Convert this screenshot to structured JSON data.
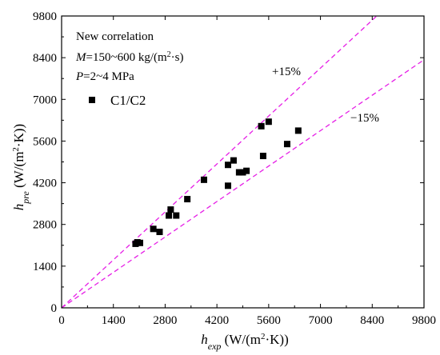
{
  "chart_data": {
    "type": "scatter",
    "title": "",
    "xlabel": {
      "main": "h",
      "sub": "exp",
      "unit": " (W/(m",
      "sup": "2",
      "unit_end": "·K))"
    },
    "ylabel": {
      "main": "h",
      "sub": "pre",
      "unit": " (W/(m",
      "sup": "2",
      "unit_end": "·K))"
    },
    "xlim": [
      0,
      9800
    ],
    "ylim": [
      0,
      9800
    ],
    "xticks": [
      0,
      1400,
      2800,
      4200,
      5600,
      7000,
      8400,
      9800
    ],
    "yticks": [
      0,
      1400,
      2800,
      4200,
      5600,
      7000,
      8400,
      9800
    ],
    "grid": false,
    "annotations": {
      "line1": "New correlation",
      "line2_var": "M",
      "line2_rest": "=150~600 kg/(m",
      "line2_sup": "2",
      "line2_end": "·s)",
      "line3_var": "P",
      "line3_rest": "=2~4 MPa"
    },
    "bands": [
      {
        "label": "+15%",
        "factor": 1.15,
        "color": "#e61ee6"
      },
      {
        "label": "−15%",
        "factor": 0.85,
        "color": "#e61ee6"
      }
    ],
    "series": [
      {
        "name": "C1/C2",
        "marker": "square",
        "color": "#000000",
        "points": [
          [
            2000,
            2150
          ],
          [
            2050,
            2200
          ],
          [
            2120,
            2180
          ],
          [
            2480,
            2650
          ],
          [
            2650,
            2550
          ],
          [
            2900,
            3100
          ],
          [
            2950,
            3300
          ],
          [
            3100,
            3100
          ],
          [
            3400,
            3650
          ],
          [
            3850,
            4300
          ],
          [
            4500,
            4800
          ],
          [
            4500,
            4100
          ],
          [
            4650,
            4950
          ],
          [
            4800,
            4550
          ],
          [
            4900,
            4550
          ],
          [
            5000,
            4600
          ],
          [
            5400,
            6100
          ],
          [
            5450,
            5100
          ],
          [
            5600,
            6250
          ],
          [
            6100,
            5500
          ],
          [
            6400,
            5950
          ]
        ]
      }
    ]
  }
}
